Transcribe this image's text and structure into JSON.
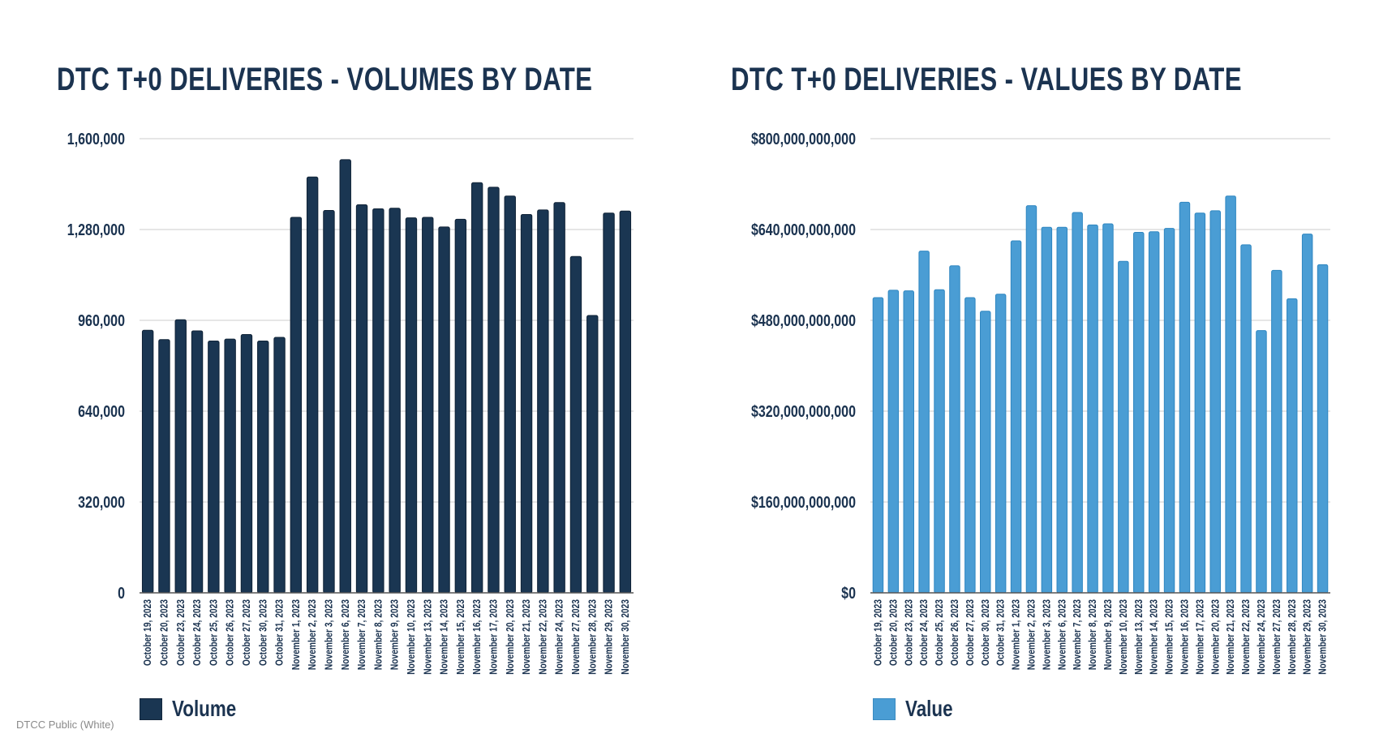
{
  "footer": "DTCC Public (White)",
  "chart_data": [
    {
      "type": "bar",
      "title": "DTC T+0 DELIVERIES - VOLUMES BY DATE",
      "xlabel": "",
      "ylabel": "",
      "ylim": [
        0,
        1600000
      ],
      "yticks": [
        "0",
        "320,000",
        "640,000",
        "960,000",
        "1,280,000",
        "1,600,000"
      ],
      "ytick_values": [
        0,
        320000,
        640000,
        960000,
        1280000,
        1600000
      ],
      "grid": true,
      "legend_placement": "bottom-left",
      "color": "#1a3652",
      "categories": [
        "October 19, 2023",
        "October 20, 2023",
        "October 23, 2023",
        "October 24, 2023",
        "October 25, 2023",
        "October 26, 2023",
        "October 27, 2023",
        "October 30, 2023",
        "October 31, 2023",
        "November 1, 2023",
        "November 2, 2023",
        "November 3, 2023",
        "November 6, 2023",
        "November 7, 2023",
        "November 8, 2023",
        "November 9, 2023",
        "November 10, 2023",
        "November 13, 2023",
        "November 14, 2023",
        "November 15, 2023",
        "November 16, 2023",
        "November 17, 2023",
        "November 20, 2023",
        "November 21, 2023",
        "November 22, 2023",
        "November 24, 2023",
        "November 27, 2023",
        "November 28, 2023",
        "November 29, 2023",
        "November 30, 2023"
      ],
      "series": [
        {
          "name": "Volume",
          "values": [
            925000,
            892000,
            962000,
            923000,
            887000,
            894000,
            910000,
            887000,
            900000,
            1323000,
            1465000,
            1347000,
            1526000,
            1367000,
            1353000,
            1355000,
            1321000,
            1323000,
            1289000,
            1316000,
            1445000,
            1429000,
            1398000,
            1333000,
            1349000,
            1375000,
            1185000,
            977000,
            1338000,
            1345000
          ]
        }
      ]
    },
    {
      "type": "bar",
      "title": "DTC T+0 DELIVERIES - VALUES BY DATE",
      "xlabel": "",
      "ylabel": "",
      "ylim": [
        0,
        800000000000
      ],
      "yticks": [
        "$0",
        "$160,000,000,000",
        "$320,000,000,000",
        "$480,000,000,000",
        "$640,000,000,000",
        "$800,000,000,000"
      ],
      "ytick_values": [
        0,
        160000000000,
        320000000000,
        480000000000,
        640000000000,
        800000000000
      ],
      "grid": true,
      "legend_placement": "bottom-left",
      "color": "#4a9dd4",
      "categories": [
        "October 19, 2023",
        "October 20, 2023",
        "October 23, 2023",
        "October 24, 2023",
        "October 25, 2023",
        "October 26, 2023",
        "October 27, 2023",
        "October 30, 2023",
        "October 31, 2023",
        "November 1, 2023",
        "November 2, 2023",
        "November 3, 2023",
        "November 6, 2023",
        "November 7, 2023",
        "November 8, 2023",
        "November 9, 2023",
        "November 10, 2023",
        "November 13, 2023",
        "November 14, 2023",
        "November 15, 2023",
        "November 16, 2023",
        "November 17, 2023",
        "November 20, 2023",
        "November 21, 2023",
        "November 22, 2023",
        "November 24, 2023",
        "November 27, 2023",
        "November 28, 2023",
        "November 29, 2023",
        "November 30, 2023"
      ],
      "series": [
        {
          "name": "Value",
          "values": [
            520000000000,
            533000000000,
            532000000000,
            602000000000,
            534000000000,
            576000000000,
            520000000000,
            496000000000,
            526000000000,
            620000000000,
            682000000000,
            644000000000,
            644000000000,
            670000000000,
            648000000000,
            650000000000,
            584000000000,
            635000000000,
            636000000000,
            642000000000,
            688000000000,
            669000000000,
            673000000000,
            699000000000,
            613000000000,
            462000000000,
            568000000000,
            518000000000,
            632000000000,
            578000000000
          ]
        }
      ]
    }
  ]
}
